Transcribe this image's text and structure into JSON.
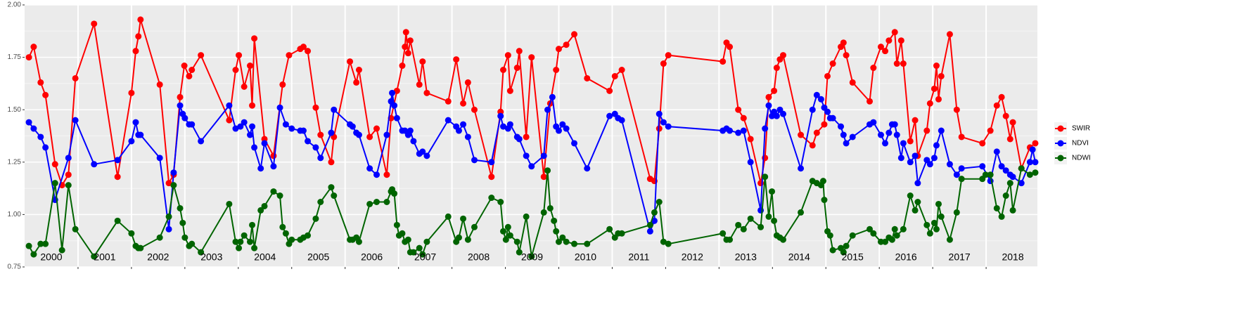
{
  "chart_data": {
    "type": "line",
    "ylim": [
      0.75,
      2.0
    ],
    "yticks": [
      {
        "value": 0.75,
        "label": "0.75"
      },
      {
        "value": 1.0,
        "label": "1.00"
      },
      {
        "value": 1.25,
        "label": "1.25"
      },
      {
        "value": 1.5,
        "label": "1.50"
      },
      {
        "value": 1.75,
        "label": "1.75"
      },
      {
        "value": 2.0,
        "label": "2.00"
      }
    ],
    "xlim": [
      2000,
      2018.96
    ],
    "xticks": [
      2001,
      2002,
      2003,
      2004,
      2005,
      2006,
      2007,
      2008,
      2009,
      2010,
      2011,
      2012,
      2013,
      2014,
      2015,
      2016,
      2017,
      2018
    ],
    "year_labels": [
      "2000",
      "2001",
      "2002",
      "2003",
      "2004",
      "2005",
      "2006",
      "2007",
      "2008",
      "2009",
      "2010",
      "2011",
      "2012",
      "2013",
      "2014",
      "2015",
      "2016",
      "2017",
      "2018"
    ],
    "grid": true,
    "legend": "right",
    "series": [
      {
        "name": "SWIR",
        "color": "#ff0000",
        "x": [
          2000.08,
          2000.17,
          2000.3,
          2000.39,
          2000.57,
          2000.7,
          2000.82,
          2000.95,
          2001.3,
          2001.74,
          2002.0,
          2002.08,
          2002.13,
          2002.17,
          2002.53,
          2002.7,
          2002.79,
          2002.91,
          2002.99,
          2003.08,
          2003.13,
          2003.3,
          2003.83,
          2003.95,
          2004.01,
          2004.11,
          2004.22,
          2004.26,
          2004.3,
          2004.49,
          2004.66,
          2004.83,
          2004.95,
          2005.16,
          2005.22,
          2005.3,
          2005.45,
          2005.54,
          2005.74,
          2005.79,
          2006.09,
          2006.21,
          2006.26,
          2006.46,
          2006.59,
          2006.78,
          2006.86,
          2006.97,
          2007.07,
          2007.12,
          2007.14,
          2007.18,
          2007.22,
          2007.39,
          2007.45,
          2007.53,
          2007.93,
          2008.08,
          2008.21,
          2008.3,
          2008.42,
          2008.74,
          2008.91,
          2008.96,
          2009.05,
          2009.09,
          2009.22,
          2009.26,
          2009.39,
          2009.49,
          2009.72,
          2009.84,
          2009.95,
          2010.0,
          2010.14,
          2010.29,
          2010.53,
          2010.95,
          2011.05,
          2011.18,
          2011.71,
          2011.79,
          2011.88,
          2011.96,
          2012.05,
          2013.07,
          2013.14,
          2013.2,
          2013.36,
          2013.46,
          2013.59,
          2013.78,
          2013.86,
          2013.93,
          2014.03,
          2014.08,
          2014.14,
          2014.2,
          2014.53,
          2014.75,
          2014.83,
          2014.97,
          2015.03,
          2015.13,
          2015.28,
          2015.33,
          2015.38,
          2015.5,
          2015.82,
          2015.89,
          2016.03,
          2016.11,
          2016.18,
          2016.29,
          2016.33,
          2016.41,
          2016.45,
          2016.58,
          2016.67,
          2016.72,
          2016.89,
          2016.95,
          2017.03,
          2017.07,
          2017.11,
          2017.16,
          2017.32,
          2017.45,
          2017.54,
          2017.93,
          2018.08,
          2018.2,
          2018.29,
          2018.37,
          2018.45,
          2018.5,
          2018.66,
          2018.82,
          2018.92
        ],
        "values": [
          1.75,
          1.8,
          1.63,
          1.57,
          1.24,
          1.14,
          1.19,
          1.65,
          1.91,
          1.18,
          1.58,
          1.78,
          1.85,
          1.93,
          1.62,
          1.15,
          1.19,
          1.56,
          1.71,
          1.66,
          1.69,
          1.76,
          1.45,
          1.69,
          1.76,
          1.61,
          1.71,
          1.52,
          1.84,
          1.36,
          1.28,
          1.62,
          1.76,
          1.79,
          1.8,
          1.78,
          1.51,
          1.38,
          1.25,
          1.37,
          1.73,
          1.63,
          1.69,
          1.37,
          1.41,
          1.19,
          1.46,
          1.59,
          1.71,
          1.8,
          1.87,
          1.77,
          1.83,
          1.62,
          1.73,
          1.58,
          1.54,
          1.74,
          1.53,
          1.63,
          1.5,
          1.18,
          1.49,
          1.69,
          1.76,
          1.59,
          1.7,
          1.78,
          1.37,
          1.75,
          1.18,
          1.53,
          1.69,
          1.79,
          1.81,
          1.86,
          1.65,
          1.59,
          1.66,
          1.69,
          1.17,
          1.16,
          1.41,
          1.72,
          1.76,
          1.73,
          1.82,
          1.8,
          1.5,
          1.46,
          1.36,
          1.15,
          1.27,
          1.56,
          1.59,
          1.7,
          1.74,
          1.76,
          1.38,
          1.33,
          1.39,
          1.43,
          1.66,
          1.72,
          1.8,
          1.82,
          1.76,
          1.63,
          1.54,
          1.7,
          1.8,
          1.78,
          1.83,
          1.87,
          1.72,
          1.83,
          1.72,
          1.35,
          1.45,
          1.28,
          1.4,
          1.53,
          1.6,
          1.71,
          1.55,
          1.66,
          1.86,
          1.5,
          1.37,
          1.34,
          1.4,
          1.52,
          1.56,
          1.47,
          1.36,
          1.44,
          1.22,
          1.32,
          1.34
        ]
      },
      {
        "name": "NDVI",
        "color": "#0000ff",
        "x": [
          2000.08,
          2000.17,
          2000.3,
          2000.39,
          2000.57,
          2000.82,
          2000.95,
          2001.3,
          2001.74,
          2002.0,
          2002.08,
          2002.13,
          2002.17,
          2002.53,
          2002.7,
          2002.79,
          2002.91,
          2002.96,
          2003.0,
          2003.08,
          2003.13,
          2003.3,
          2003.83,
          2003.95,
          2004.04,
          2004.11,
          2004.22,
          2004.26,
          2004.3,
          2004.42,
          2004.49,
          2004.66,
          2004.78,
          2004.89,
          2005.0,
          2005.16,
          2005.22,
          2005.3,
          2005.45,
          2005.54,
          2005.74,
          2005.79,
          2006.09,
          2006.14,
          2006.21,
          2006.26,
          2006.46,
          2006.59,
          2006.78,
          2006.86,
          2006.88,
          2006.92,
          2006.97,
          2007.07,
          2007.12,
          2007.18,
          2007.22,
          2007.28,
          2007.39,
          2007.45,
          2007.53,
          2007.93,
          2008.08,
          2008.13,
          2008.21,
          2008.3,
          2008.42,
          2008.74,
          2008.91,
          2008.96,
          2009.05,
          2009.09,
          2009.22,
          2009.26,
          2009.39,
          2009.49,
          2009.72,
          2009.79,
          2009.88,
          2009.95,
          2010.0,
          2010.07,
          2010.14,
          2010.29,
          2010.53,
          2010.95,
          2011.05,
          2011.11,
          2011.18,
          2011.71,
          2011.79,
          2011.88,
          2011.96,
          2012.05,
          2013.07,
          2013.14,
          2013.2,
          2013.36,
          2013.46,
          2013.59,
          2013.78,
          2013.86,
          2013.93,
          2013.99,
          2014.03,
          2014.08,
          2014.14,
          2014.2,
          2014.53,
          2014.75,
          2014.83,
          2014.91,
          2014.97,
          2015.03,
          2015.08,
          2015.13,
          2015.28,
          2015.33,
          2015.38,
          2015.5,
          2015.82,
          2015.89,
          2016.03,
          2016.11,
          2016.18,
          2016.24,
          2016.29,
          2016.33,
          2016.41,
          2016.45,
          2016.58,
          2016.67,
          2016.72,
          2016.89,
          2016.95,
          2017.03,
          2017.07,
          2017.16,
          2017.32,
          2017.45,
          2017.54,
          2017.93,
          2018.08,
          2018.2,
          2018.29,
          2018.37,
          2018.45,
          2018.5,
          2018.66,
          2018.82,
          2018.87,
          2018.92
        ],
        "values": [
          1.44,
          1.41,
          1.37,
          1.32,
          1.07,
          1.27,
          1.45,
          1.24,
          1.26,
          1.35,
          1.44,
          1.38,
          1.38,
          1.27,
          0.93,
          1.2,
          1.52,
          1.48,
          1.46,
          1.43,
          1.43,
          1.35,
          1.52,
          1.41,
          1.42,
          1.44,
          1.38,
          1.42,
          1.32,
          1.22,
          1.34,
          1.23,
          1.51,
          1.43,
          1.41,
          1.4,
          1.4,
          1.35,
          1.32,
          1.27,
          1.39,
          1.5,
          1.43,
          1.42,
          1.39,
          1.38,
          1.22,
          1.19,
          1.38,
          1.54,
          1.58,
          1.52,
          1.46,
          1.4,
          1.4,
          1.38,
          1.4,
          1.35,
          1.29,
          1.3,
          1.28,
          1.45,
          1.42,
          1.4,
          1.43,
          1.37,
          1.26,
          1.25,
          1.47,
          1.42,
          1.41,
          1.43,
          1.37,
          1.36,
          1.28,
          1.23,
          1.28,
          1.5,
          1.56,
          1.42,
          1.4,
          1.43,
          1.41,
          1.34,
          1.22,
          1.47,
          1.48,
          1.46,
          1.45,
          0.92,
          0.97,
          1.48,
          1.44,
          1.42,
          1.4,
          1.41,
          1.4,
          1.39,
          1.4,
          1.25,
          1.02,
          1.41,
          1.52,
          1.47,
          1.49,
          1.47,
          1.5,
          1.48,
          1.22,
          1.5,
          1.57,
          1.55,
          1.51,
          1.49,
          1.46,
          1.46,
          1.42,
          1.38,
          1.34,
          1.37,
          1.43,
          1.44,
          1.38,
          1.34,
          1.39,
          1.43,
          1.43,
          1.38,
          1.27,
          1.34,
          1.25,
          1.28,
          1.15,
          1.26,
          1.24,
          1.27,
          1.33,
          1.4,
          1.24,
          1.19,
          1.22,
          1.23,
          1.16,
          1.3,
          1.23,
          1.21,
          1.19,
          1.18,
          1.15,
          1.25,
          1.31,
          1.25
        ]
      },
      {
        "name": "NDWI",
        "color": "#006400",
        "x": [
          2000.08,
          2000.17,
          2000.3,
          2000.39,
          2000.57,
          2000.7,
          2000.82,
          2000.95,
          2001.3,
          2001.74,
          2002.0,
          2002.08,
          2002.13,
          2002.17,
          2002.53,
          2002.7,
          2002.79,
          2002.91,
          2002.96,
          2003.0,
          2003.08,
          2003.13,
          2003.3,
          2003.83,
          2003.95,
          2004.01,
          2004.04,
          2004.11,
          2004.22,
          2004.26,
          2004.3,
          2004.42,
          2004.49,
          2004.66,
          2004.78,
          2004.83,
          2004.89,
          2004.95,
          2005.0,
          2005.16,
          2005.22,
          2005.3,
          2005.45,
          2005.54,
          2005.74,
          2005.79,
          2006.09,
          2006.14,
          2006.21,
          2006.26,
          2006.46,
          2006.59,
          2006.78,
          2006.86,
          2006.88,
          2006.92,
          2006.97,
          2007.01,
          2007.07,
          2007.12,
          2007.18,
          2007.22,
          2007.28,
          2007.39,
          2007.45,
          2007.53,
          2007.93,
          2008.08,
          2008.13,
          2008.21,
          2008.3,
          2008.42,
          2008.74,
          2008.91,
          2008.96,
          2009.01,
          2009.05,
          2009.09,
          2009.22,
          2009.26,
          2009.39,
          2009.49,
          2009.72,
          2009.79,
          2009.84,
          2009.91,
          2009.95,
          2010.0,
          2010.07,
          2010.14,
          2010.29,
          2010.53,
          2010.95,
          2011.05,
          2011.11,
          2011.18,
          2011.71,
          2011.79,
          2011.88,
          2011.96,
          2012.05,
          2013.07,
          2013.14,
          2013.2,
          2013.36,
          2013.46,
          2013.59,
          2013.78,
          2013.86,
          2013.93,
          2013.99,
          2014.03,
          2014.08,
          2014.14,
          2014.2,
          2014.53,
          2014.75,
          2014.83,
          2014.91,
          2014.95,
          2014.97,
          2015.03,
          2015.08,
          2015.13,
          2015.28,
          2015.33,
          2015.38,
          2015.5,
          2015.82,
          2015.89,
          2016.03,
          2016.11,
          2016.18,
          2016.24,
          2016.29,
          2016.33,
          2016.45,
          2016.58,
          2016.67,
          2016.72,
          2016.89,
          2016.95,
          2017.03,
          2017.07,
          2017.11,
          2017.16,
          2017.32,
          2017.45,
          2017.54,
          2017.93,
          2017.99,
          2018.08,
          2018.2,
          2018.29,
          2018.37,
          2018.45,
          2018.5,
          2018.66,
          2018.82,
          2018.92
        ],
        "values": [
          0.85,
          0.81,
          0.86,
          0.86,
          1.15,
          0.83,
          1.14,
          0.93,
          0.8,
          0.97,
          0.91,
          0.85,
          0.84,
          0.84,
          0.89,
          0.99,
          1.14,
          1.03,
          0.96,
          0.89,
          0.85,
          0.86,
          0.82,
          1.05,
          0.87,
          0.84,
          0.87,
          0.9,
          0.87,
          0.95,
          0.84,
          1.02,
          1.04,
          1.11,
          1.09,
          0.94,
          0.91,
          0.86,
          0.88,
          0.88,
          0.89,
          0.9,
          0.98,
          1.06,
          1.13,
          1.09,
          0.88,
          0.88,
          0.89,
          0.87,
          1.05,
          1.06,
          1.06,
          1.11,
          1.12,
          1.1,
          0.95,
          0.9,
          0.91,
          0.87,
          0.88,
          0.82,
          0.82,
          0.84,
          0.81,
          0.87,
          0.99,
          0.87,
          0.89,
          0.98,
          0.88,
          0.94,
          1.08,
          1.06,
          0.92,
          0.88,
          0.94,
          0.9,
          0.87,
          0.82,
          0.99,
          0.8,
          1.01,
          1.21,
          1.03,
          0.97,
          0.92,
          0.87,
          0.89,
          0.87,
          0.86,
          0.86,
          0.93,
          0.89,
          0.91,
          0.91,
          0.95,
          1.01,
          1.06,
          0.87,
          0.86,
          0.91,
          0.88,
          0.88,
          0.95,
          0.93,
          0.98,
          0.94,
          1.18,
          0.99,
          1.11,
          0.97,
          0.9,
          0.89,
          0.88,
          1.01,
          1.16,
          1.15,
          1.14,
          1.16,
          1.07,
          0.92,
          0.9,
          0.83,
          0.84,
          0.82,
          0.85,
          0.9,
          0.93,
          0.91,
          0.87,
          0.87,
          0.89,
          0.88,
          0.93,
          0.9,
          0.93,
          1.09,
          1.02,
          1.06,
          0.95,
          0.91,
          0.96,
          0.93,
          1.05,
          0.99,
          0.88,
          1.01,
          1.17,
          1.17,
          1.19,
          1.19,
          1.03,
          0.99,
          1.09,
          1.15,
          1.02,
          1.22,
          1.19,
          1.2
        ]
      }
    ]
  }
}
